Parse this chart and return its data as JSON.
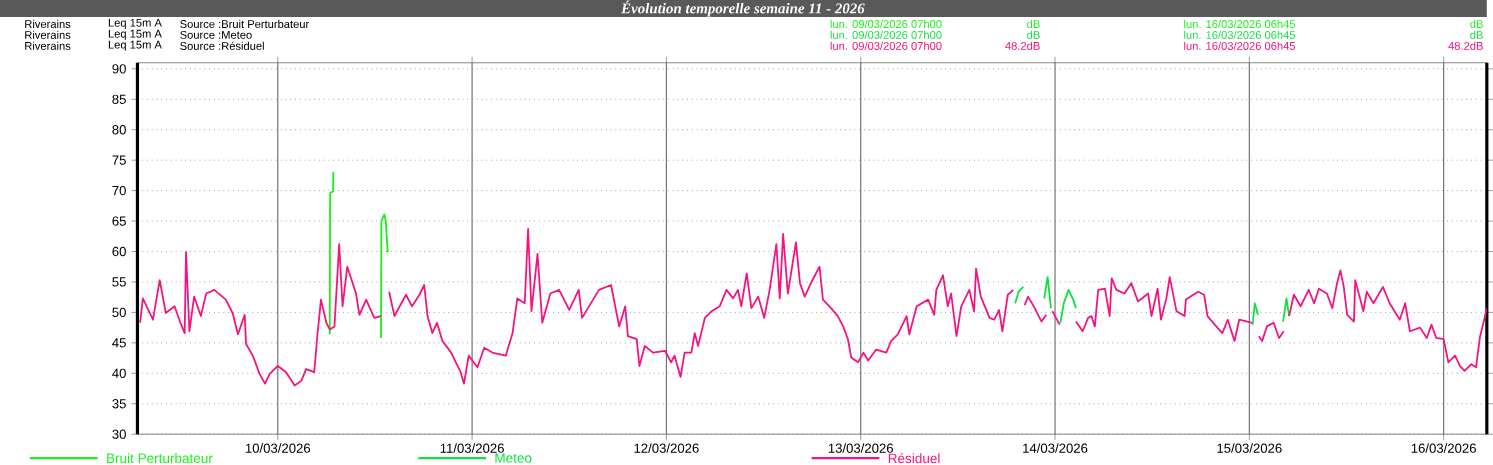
{
  "chart_data": {
    "type": "line",
    "title": "Évolution temporelle semaine 11 - 2026",
    "annotations": [
      "Riverains",
      "Leq 15m A",
      "Source :Bruit Perturbateur",
      "lun. 09/03/2026 07h00",
      "dB",
      "lun. 16/03/2026 06h45",
      "dB",
      "Riverains",
      "Leq 15m A",
      "Source :Meteo",
      "lun. 09/03/2026 07h00",
      "dB",
      "lun. 16/03/2026 06h45",
      "dB",
      "Riverains",
      "Leq 15m A",
      "Source :Résiduel",
      "lun. 09/03/2026 07h00",
      "48.2dB",
      "lun. 16/03/2026 06h45",
      "48.2dB"
    ],
    "xlim": [
      "2026-03-09T06:40",
      "2026-03-16T05:20"
    ],
    "xticks": [
      {
        "value": "2026-03-10T00:00",
        "label": "10/03/2026"
      },
      {
        "value": "2026-03-11T00:00",
        "label": "11/03/2026"
      },
      {
        "value": "2026-03-12T00:00",
        "label": "12/03/2026"
      },
      {
        "value": "2026-03-13T00:00",
        "label": "13/03/2026"
      },
      {
        "value": "2026-03-14T00:00",
        "label": "14/03/2026"
      },
      {
        "value": "2026-03-15T00:00",
        "label": "15/03/2026"
      },
      {
        "value": "2026-03-16T00:00",
        "label": "16/03/2026"
      }
    ],
    "ylim": [
      30,
      91
    ],
    "yticks": [
      30,
      35,
      40,
      45,
      50,
      55,
      60,
      65,
      70,
      75,
      80,
      85,
      90
    ],
    "grid": true,
    "legend": "bottom",
    "series": [
      {
        "name": "Bruit Perturbateur",
        "color": "#19f019",
        "x": [
          "2026-03-10T06:25",
          "2026-03-10T06:28",
          "2026-03-10T06:50",
          "2026-03-10T06:52",
          "2026-03-10T08:00",
          "2026-03-10T12:45",
          "2026-03-10T12:48",
          "2026-03-10T13:10",
          "2026-03-10T13:20",
          "2026-03-10T13:35"
        ],
        "values": [
          46.4,
          69.6,
          69.9,
          73.1,
          null,
          45.8,
          65.0,
          66.1,
          65.0,
          59.9
        ]
      },
      {
        "name": "Meteo",
        "color": "#10e040",
        "x": [
          "2026-03-13T19:05",
          "2026-03-13T19:30",
          "2026-03-13T20:05",
          "2026-03-13T20:10",
          "2026-03-13T22:40",
          "2026-03-13T23:05",
          "2026-03-13T23:30",
          "2026-03-13T23:50",
          "2026-03-14T00:40",
          "2026-03-14T01:05",
          "2026-03-14T01:40",
          "2026-03-14T02:15",
          "2026-03-14T02:35",
          "2026-03-14T03:00",
          "2026-03-15T00:25",
          "2026-03-15T00:40",
          "2026-03-15T01:05",
          "2026-03-15T02:00",
          "2026-03-15T04:10",
          "2026-03-15T04:35",
          "2026-03-15T04:55"
        ],
        "values": [
          51.5,
          53.4,
          54.2,
          null,
          52.3,
          55.8,
          50.7,
          null,
          48.3,
          51.5,
          53.7,
          52.1,
          50.7,
          null,
          48.0,
          51.5,
          49.6,
          null,
          48.5,
          52.3,
          49.4
        ]
      },
      {
        "name": "Résiduel",
        "color": "#f5147f",
        "x": [
          "2026-03-09T07:00",
          "2026-03-09T07:20",
          "2026-03-09T08:35",
          "2026-03-09T09:25",
          "2026-03-09T10:10",
          "2026-03-09T11:15",
          "2026-03-09T11:55",
          "2026-03-09T12:30",
          "2026-03-09T12:40",
          "2026-03-09T13:05",
          "2026-03-09T13:40",
          "2026-03-09T14:30",
          "2026-03-09T15:10",
          "2026-03-09T16:10",
          "2026-03-09T17:35",
          "2026-03-09T18:25",
          "2026-03-09T19:05",
          "2026-03-09T19:55",
          "2026-03-09T20:05",
          "2026-03-09T20:55",
          "2026-03-09T21:45",
          "2026-03-09T22:25",
          "2026-03-09T23:00",
          "2026-03-10T00:00",
          "2026-03-10T01:00",
          "2026-03-10T02:05",
          "2026-03-10T02:55",
          "2026-03-10T03:30",
          "2026-03-10T04:30",
          "2026-03-10T04:55",
          "2026-03-10T05:20",
          "2026-03-10T06:00",
          "2026-03-10T06:25",
          "2026-03-10T07:00",
          "2026-03-10T07:35",
          "2026-03-10T08:00",
          "2026-03-10T08:35",
          "2026-03-10T09:40",
          "2026-03-10T10:05",
          "2026-03-10T10:55",
          "2026-03-10T11:55",
          "2026-03-10T12:45",
          "2026-03-10T13:15",
          "2026-03-10T13:45",
          "2026-03-10T14:25",
          "2026-03-10T15:50",
          "2026-03-10T16:35",
          "2026-03-10T17:30",
          "2026-03-10T18:05",
          "2026-03-10T18:30",
          "2026-03-10T19:05",
          "2026-03-10T19:40",
          "2026-03-10T20:20",
          "2026-03-10T21:25",
          "2026-03-10T22:35",
          "2026-03-10T23:00",
          "2026-03-10T23:35",
          "2026-03-11T00:40",
          "2026-03-11T01:30",
          "2026-03-11T02:30",
          "2026-03-11T04:10",
          "2026-03-11T05:00",
          "2026-03-11T05:35",
          "2026-03-11T06:30",
          "2026-03-11T06:55",
          "2026-03-11T07:20",
          "2026-03-11T08:05",
          "2026-03-11T08:40",
          "2026-03-11T09:40",
          "2026-03-11T10:45",
          "2026-03-11T12:00",
          "2026-03-11T13:10",
          "2026-03-11T13:35",
          "2026-03-11T15:40",
          "2026-03-11T17:10",
          "2026-03-11T18:10",
          "2026-03-11T18:55",
          "2026-03-11T19:15",
          "2026-03-11T20:20",
          "2026-03-11T20:40",
          "2026-03-11T21:20",
          "2026-03-11T22:20",
          "2026-03-11T23:50",
          "2026-03-12T00:35",
          "2026-03-12T01:00",
          "2026-03-12T01:45",
          "2026-03-12T02:15",
          "2026-03-12T03:05",
          "2026-03-12T03:30",
          "2026-03-12T03:55",
          "2026-03-12T04:45",
          "2026-03-12T05:35",
          "2026-03-12T06:35",
          "2026-03-12T07:25",
          "2026-03-12T08:15",
          "2026-03-12T08:50",
          "2026-03-12T09:15",
          "2026-03-12T09:55",
          "2026-03-12T10:30",
          "2026-03-12T11:20",
          "2026-03-12T12:05",
          "2026-03-12T12:45",
          "2026-03-12T13:35",
          "2026-03-12T14:00",
          "2026-03-12T14:25",
          "2026-03-12T15:00",
          "2026-03-12T16:00",
          "2026-03-12T16:30",
          "2026-03-12T17:05",
          "2026-03-12T17:55",
          "2026-03-12T18:55",
          "2026-03-12T19:20",
          "2026-03-12T20:20",
          "2026-03-12T21:10",
          "2026-03-12T21:50",
          "2026-03-12T22:25",
          "2026-03-12T22:50",
          "2026-03-12T23:40",
          "2026-03-13T00:20",
          "2026-03-13T00:55",
          "2026-03-13T01:55",
          "2026-03-13T03:10",
          "2026-03-13T03:45",
          "2026-03-13T04:35",
          "2026-03-13T05:40",
          "2026-03-13T06:00",
          "2026-03-13T06:55",
          "2026-03-13T08:20",
          "2026-03-13T09:05",
          "2026-03-13T09:20",
          "2026-03-13T10:10",
          "2026-03-13T10:45",
          "2026-03-13T11:10",
          "2026-03-13T11:50",
          "2026-03-13T12:25",
          "2026-03-13T13:25",
          "2026-03-13T14:00",
          "2026-03-13T14:15",
          "2026-03-13T14:50",
          "2026-03-13T15:55",
          "2026-03-13T16:30",
          "2026-03-13T17:05",
          "2026-03-13T17:30",
          "2026-03-13T18:10",
          "2026-03-13T18:50",
          "2026-03-13T19:00",
          "2026-03-13T20:15",
          "2026-03-13T20:40",
          "2026-03-13T21:30",
          "2026-03-13T22:20",
          "2026-03-13T22:55",
          "2026-03-13T23:10",
          "2026-03-13T23:40",
          "2026-03-14T00:35",
          "2026-03-14T00:50",
          "2026-03-14T02:35",
          "2026-03-14T03:25",
          "2026-03-14T04:05",
          "2026-03-14T04:30",
          "2026-03-14T04:55",
          "2026-03-14T05:20",
          "2026-03-14T06:10",
          "2026-03-14T06:45",
          "2026-03-14T07:00",
          "2026-03-14T07:35",
          "2026-03-14T08:35",
          "2026-03-14T09:25",
          "2026-03-14T10:15",
          "2026-03-14T11:30",
          "2026-03-14T11:55",
          "2026-03-14T12:40",
          "2026-03-14T13:05",
          "2026-03-14T13:45",
          "2026-03-14T14:10",
          "2026-03-14T15:00",
          "2026-03-14T16:00",
          "2026-03-14T16:10",
          "2026-03-14T17:40",
          "2026-03-14T18:25",
          "2026-03-14T18:50",
          "2026-03-14T19:55",
          "2026-03-14T20:40",
          "2026-03-14T21:20",
          "2026-03-14T22:10",
          "2026-03-14T22:45",
          "2026-03-14T23:45",
          "2026-03-15T00:20",
          "2026-03-15T00:30",
          "2026-03-15T01:10",
          "2026-03-15T01:35",
          "2026-03-15T02:10",
          "2026-03-15T03:00",
          "2026-03-15T03:40",
          "2026-03-15T04:15",
          "2026-03-15T04:25",
          "2026-03-15T04:55",
          "2026-03-15T05:30",
          "2026-03-15T06:20",
          "2026-03-15T07:20",
          "2026-03-15T08:00",
          "2026-03-15T08:35",
          "2026-03-15T09:35",
          "2026-03-15T10:15",
          "2026-03-15T10:50",
          "2026-03-15T11:15",
          "2026-03-15T11:40",
          "2026-03-15T12:05",
          "2026-03-15T12:55",
          "2026-03-15T13:05",
          "2026-03-15T14:05",
          "2026-03-15T14:30",
          "2026-03-15T15:20",
          "2026-03-15T16:30",
          "2026-03-15T17:20",
          "2026-03-15T18:35",
          "2026-03-15T19:15",
          "2026-03-15T19:50",
          "2026-03-15T21:05",
          "2026-03-15T21:55",
          "2026-03-15T22:30",
          "2026-03-15T23:05",
          "2026-03-16T00:00",
          "2026-03-16T00:35",
          "2026-03-16T01:25",
          "2026-03-16T02:00",
          "2026-03-16T02:35",
          "2026-03-16T03:25",
          "2026-03-16T04:00",
          "2026-03-16T04:30",
          "2026-03-16T04:55",
          "2026-03-16T05:20"
        ],
        "values": [
          48.3,
          52.3,
          48.8,
          55.3,
          49.9,
          51.0,
          48.5,
          46.6,
          59.9,
          46.9,
          52.6,
          49.4,
          53.1,
          53.7,
          52.1,
          49.9,
          46.4,
          49.6,
          44.8,
          42.9,
          39.9,
          38.3,
          39.9,
          41.2,
          40.2,
          38.0,
          38.8,
          40.7,
          40.2,
          46.6,
          52.1,
          48.3,
          47.2,
          47.7,
          61.2,
          51.0,
          57.5,
          53.1,
          49.6,
          52.1,
          49.1,
          49.4,
          null,
          53.4,
          49.4,
          52.9,
          51.0,
          52.9,
          54.5,
          49.4,
          46.6,
          48.3,
          45.3,
          43.4,
          40.2,
          38.3,
          42.9,
          41.0,
          44.2,
          43.4,
          42.9,
          46.6,
          52.3,
          51.5,
          63.7,
          50.2,
          59.6,
          48.3,
          53.1,
          53.7,
          50.4,
          53.7,
          49.1,
          53.7,
          54.5,
          47.7,
          51.0,
          46.1,
          45.6,
          41.2,
          44.5,
          43.4,
          43.7,
          41.8,
          42.9,
          39.4,
          43.4,
          43.4,
          46.6,
          44.5,
          49.1,
          50.2,
          51.0,
          53.7,
          52.3,
          53.7,
          51.0,
          56.4,
          50.7,
          52.6,
          49.1,
          53.7,
          61.2,
          52.3,
          62.9,
          53.1,
          61.5,
          54.8,
          52.6,
          55.0,
          57.5,
          52.1,
          50.7,
          49.4,
          47.7,
          45.6,
          42.6,
          41.8,
          43.4,
          42.1,
          43.9,
          43.4,
          45.3,
          46.4,
          49.4,
          46.4,
          51.0,
          52.1,
          49.6,
          53.7,
          56.1,
          51.0,
          53.1,
          46.1,
          51.0,
          53.7,
          50.2,
          57.2,
          52.6,
          49.1,
          48.8,
          50.4,
          46.9,
          52.9,
          53.7,
          null,
          51.2,
          52.6,
          50.7,
          48.5,
          49.6,
          null,
          50.2,
          48.0,
          null,
          48.5,
          46.9,
          49.1,
          49.4,
          47.7,
          53.7,
          53.9,
          49.4,
          55.6,
          53.7,
          53.1,
          54.8,
          51.8,
          53.1,
          49.4,
          53.9,
          48.8,
          52.3,
          55.8,
          50.2,
          49.4,
          52.1,
          53.4,
          52.9,
          49.4,
          47.7,
          46.6,
          48.8,
          45.3,
          48.8,
          48.5,
          48.3,
          null,
          46.1,
          45.3,
          47.7,
          48.3,
          45.8,
          46.9,
          null,
          49.4,
          52.9,
          51.0,
          53.7,
          51.5,
          53.9,
          53.1,
          50.7,
          54.8,
          56.9,
          54.2,
          49.6,
          48.5,
          55.3,
          50.2,
          53.4,
          51.5,
          54.2,
          51.5,
          48.8,
          51.5,
          46.9,
          47.5,
          45.8,
          48.0,
          45.8,
          45.6,
          41.8,
          42.9,
          41.2,
          40.4,
          41.5,
          41.0,
          46.1,
          48.3,
          50.7
        ]
      }
    ]
  }
}
